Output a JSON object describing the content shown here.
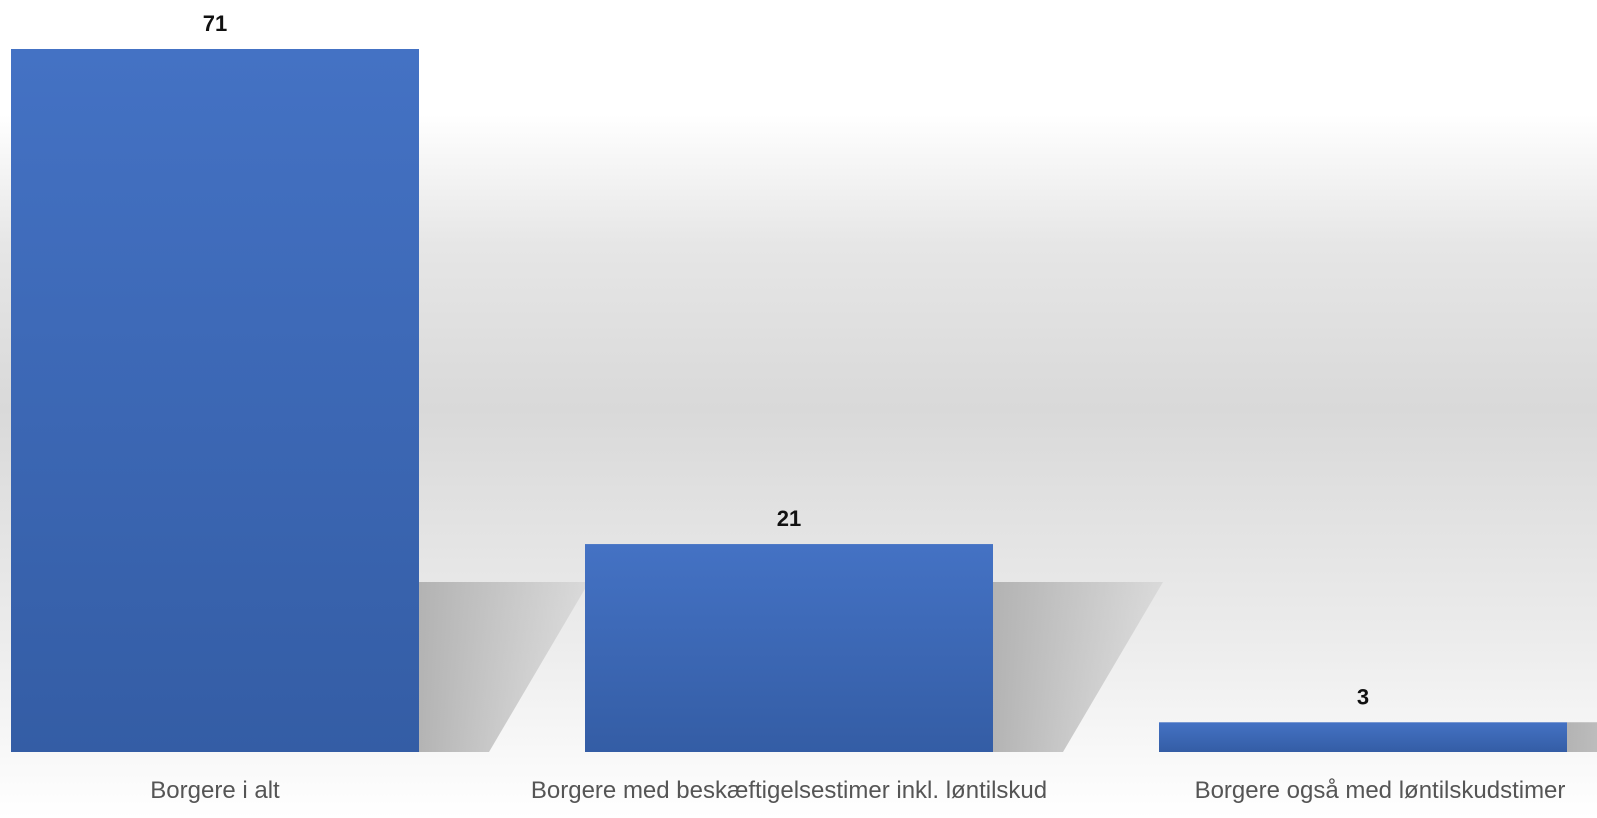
{
  "chart_data": {
    "type": "bar",
    "categories": [
      "Borgere i alt",
      "Borgere med beskæftigelsestimer inkl. løntilskud",
      "Borgere også med løntilskudstimer"
    ],
    "values": [
      71,
      21,
      3
    ],
    "data_labels": [
      "71",
      "21",
      "3"
    ],
    "title": "",
    "xlabel": "",
    "ylabel": "",
    "ylim": [
      0,
      71
    ],
    "grid": false,
    "legend": "none",
    "colors": {
      "bar_top": "#4472C4",
      "bar_bottom": "#345DA5",
      "background_top": "#FFFFFF",
      "background_mid": "#D9D9D9",
      "shadow": "#B7B7B7"
    }
  }
}
